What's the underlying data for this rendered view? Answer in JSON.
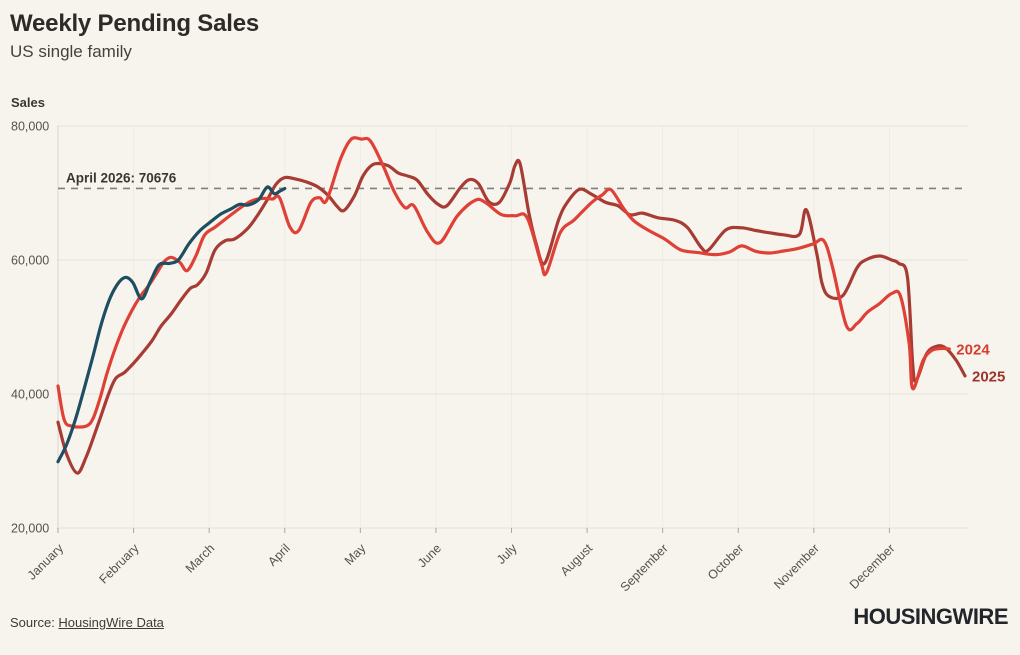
{
  "header": {
    "title": "Weekly Pending Sales",
    "subtitle": "US single family"
  },
  "footer": {
    "source_prefix": "Source: ",
    "source_link_text": "HousingWire Data",
    "logo_text": "HOUSINGWIRE"
  },
  "colors": {
    "background": "#f7f4ee",
    "grid": "#e5e2da",
    "grid_vertical": "#eeebe4",
    "axis": "#d9d6ce",
    "tick": "#aaa79f",
    "tick_text": "#55524e",
    "dashed_line": "#7f7f7c",
    "annotation_text": "#3a3733",
    "series_2024": "#df4137",
    "series_2025": "#a63c33",
    "series_2026": "#1d4e61",
    "label_2024": "#d43d30",
    "label_2025": "#9c352b"
  },
  "chart_data": {
    "type": "line",
    "title": "Weekly Pending Sales",
    "subtitle": "US single family",
    "ylabel": "Sales",
    "ylim": [
      20000,
      80000
    ],
    "yticks": [
      {
        "value": 80000,
        "label": "80,000"
      },
      {
        "value": 60000,
        "label": "60,000"
      },
      {
        "value": 40000,
        "label": "40,000"
      },
      {
        "value": 20000,
        "label": "20,000"
      }
    ],
    "x_axis": {
      "unit": "week-of-year",
      "range": [
        0,
        52
      ],
      "month_labels": [
        "January",
        "February",
        "March",
        "April",
        "May",
        "June",
        "July",
        "August",
        "September",
        "October",
        "November",
        "December"
      ]
    },
    "grid": "horizontal-major, faint vertical monthly",
    "legend_position": "line-end",
    "annotation": {
      "label": "April 2026: 70676",
      "value": 70676
    },
    "series": [
      {
        "name": "2025",
        "color_key": "series_2025",
        "label_color_key": "label_2025",
        "show_end_label": true,
        "points": [
          [
            0,
            35800
          ],
          [
            0.5,
            31000
          ],
          [
            1.1,
            28200
          ],
          [
            1.6,
            30500
          ],
          [
            2.1,
            34000
          ],
          [
            2.5,
            37000
          ],
          [
            2.9,
            40000
          ],
          [
            3.3,
            42300
          ],
          [
            3.8,
            43200
          ],
          [
            4.3,
            44500
          ],
          [
            4.8,
            46000
          ],
          [
            5.4,
            48000
          ],
          [
            5.9,
            50100
          ],
          [
            6.5,
            52000
          ],
          [
            7.1,
            54200
          ],
          [
            7.6,
            55800
          ],
          [
            8,
            56300
          ],
          [
            8.5,
            58100
          ],
          [
            9,
            61500
          ],
          [
            9.6,
            62900
          ],
          [
            10.1,
            63100
          ],
          [
            10.8,
            64500
          ],
          [
            11.4,
            66500
          ],
          [
            12,
            69000
          ],
          [
            12.5,
            71300
          ],
          [
            13,
            72300
          ],
          [
            13.6,
            72100
          ],
          [
            14.3,
            71600
          ],
          [
            14.9,
            70900
          ],
          [
            15.5,
            69600
          ],
          [
            16,
            68000
          ],
          [
            16.4,
            67400
          ],
          [
            17,
            69600
          ],
          [
            17.5,
            72600
          ],
          [
            18.1,
            74300
          ],
          [
            18.9,
            74100
          ],
          [
            19.5,
            73000
          ],
          [
            20.1,
            72500
          ],
          [
            20.6,
            71900
          ],
          [
            21.2,
            69800
          ],
          [
            21.8,
            68300
          ],
          [
            22.3,
            68100
          ],
          [
            23.1,
            70900
          ],
          [
            23.6,
            72000
          ],
          [
            24.1,
            71400
          ],
          [
            24.7,
            68700
          ],
          [
            25.3,
            68600
          ],
          [
            25.9,
            71500
          ],
          [
            26.2,
            74100
          ],
          [
            26.5,
            74300
          ],
          [
            27,
            67000
          ],
          [
            27.4,
            62600
          ],
          [
            27.9,
            59500
          ],
          [
            28.7,
            66000
          ],
          [
            29.2,
            68600
          ],
          [
            29.9,
            70550
          ],
          [
            30.6,
            69800
          ],
          [
            31.4,
            68600
          ],
          [
            32.1,
            68100
          ],
          [
            32.8,
            66750
          ],
          [
            33.5,
            67000
          ],
          [
            34.4,
            66300
          ],
          [
            35.4,
            65900
          ],
          [
            36.1,
            64800
          ],
          [
            36.9,
            61800
          ],
          [
            37.3,
            61500
          ],
          [
            38.3,
            64500
          ],
          [
            39.2,
            64800
          ],
          [
            40,
            64400
          ],
          [
            40.8,
            64060
          ],
          [
            41.6,
            63760
          ],
          [
            42.5,
            63800
          ],
          [
            42.9,
            67500
          ],
          [
            43.5,
            61000
          ],
          [
            43.8,
            56540
          ],
          [
            44.2,
            54580
          ],
          [
            45,
            54700
          ],
          [
            45.8,
            58800
          ],
          [
            46.3,
            60000
          ],
          [
            47.1,
            60600
          ],
          [
            47.8,
            60000
          ],
          [
            48.2,
            59500
          ],
          [
            48.7,
            57500
          ],
          [
            49,
            44500
          ],
          [
            49.2,
            42000
          ],
          [
            49.8,
            46000
          ],
          [
            50.4,
            47150
          ],
          [
            50.9,
            46850
          ],
          [
            51.5,
            45000
          ],
          [
            52,
            42700
          ]
        ]
      },
      {
        "name": "2024",
        "color_key": "series_2024",
        "label_color_key": "label_2024",
        "show_end_label": true,
        "points": [
          [
            0,
            41200
          ],
          [
            0.35,
            36200
          ],
          [
            0.8,
            35200
          ],
          [
            1.6,
            35200
          ],
          [
            2,
            36300
          ],
          [
            2.4,
            39300
          ],
          [
            2.8,
            43000
          ],
          [
            3.2,
            46200
          ],
          [
            3.7,
            49600
          ],
          [
            4.2,
            52300
          ],
          [
            4.7,
            54500
          ],
          [
            5.2,
            56200
          ],
          [
            5.7,
            58200
          ],
          [
            6.1,
            59800
          ],
          [
            6.5,
            60400
          ],
          [
            7,
            59600
          ],
          [
            7.4,
            58400
          ],
          [
            7.9,
            60600
          ],
          [
            8.4,
            63700
          ],
          [
            9,
            64900
          ],
          [
            9.6,
            66100
          ],
          [
            10.2,
            67300
          ],
          [
            10.8,
            68400
          ],
          [
            11.3,
            69000
          ],
          [
            11.8,
            69200
          ],
          [
            12.3,
            69100
          ],
          [
            12.7,
            69300
          ],
          [
            13.3,
            64900
          ],
          [
            13.8,
            64400
          ],
          [
            14.5,
            68600
          ],
          [
            15,
            69300
          ],
          [
            15.4,
            68900
          ],
          [
            16.2,
            75100
          ],
          [
            16.8,
            78000
          ],
          [
            17.4,
            78050
          ],
          [
            17.9,
            77800
          ],
          [
            18.6,
            74300
          ],
          [
            19.3,
            70100
          ],
          [
            19.9,
            67800
          ],
          [
            20.4,
            68100
          ],
          [
            21.2,
            64100
          ],
          [
            21.9,
            62600
          ],
          [
            22.9,
            66600
          ],
          [
            23.9,
            68900
          ],
          [
            24.5,
            68600
          ],
          [
            25.4,
            66800
          ],
          [
            26.2,
            66600
          ],
          [
            26.9,
            66300
          ],
          [
            27.7,
            59500
          ],
          [
            28,
            58100
          ],
          [
            28.8,
            64100
          ],
          [
            29.6,
            66000
          ],
          [
            30.6,
            68600
          ],
          [
            31.2,
            69700
          ],
          [
            31.7,
            70500
          ],
          [
            32.4,
            67800
          ],
          [
            33,
            65900
          ],
          [
            33.8,
            64500
          ],
          [
            34.8,
            63100
          ],
          [
            35.7,
            61500
          ],
          [
            36.7,
            61100
          ],
          [
            37.7,
            60800
          ],
          [
            38.5,
            61200
          ],
          [
            39.2,
            62100
          ],
          [
            40,
            61300
          ],
          [
            40.8,
            61050
          ],
          [
            41.6,
            61350
          ],
          [
            42.4,
            61700
          ],
          [
            43.3,
            62400
          ],
          [
            43.9,
            62900
          ],
          [
            44.4,
            59000
          ],
          [
            45.2,
            50200
          ],
          [
            45.8,
            50500
          ],
          [
            46.4,
            52200
          ],
          [
            47.1,
            53500
          ],
          [
            47.8,
            55000
          ],
          [
            48.3,
            54600
          ],
          [
            48.8,
            47500
          ],
          [
            49,
            40800
          ],
          [
            49.6,
            45000
          ],
          [
            50.1,
            46500
          ],
          [
            50.7,
            46800
          ],
          [
            51.1,
            46700
          ]
        ]
      },
      {
        "name": "2026",
        "color_key": "series_2026",
        "show_end_label": false,
        "points": [
          [
            0,
            29900
          ],
          [
            0.5,
            32500
          ],
          [
            1,
            36200
          ],
          [
            1.5,
            40800
          ],
          [
            2,
            45600
          ],
          [
            2.5,
            50600
          ],
          [
            3,
            54400
          ],
          [
            3.5,
            56700
          ],
          [
            3.9,
            57400
          ],
          [
            4.3,
            56600
          ],
          [
            4.8,
            54200
          ],
          [
            5.3,
            56800
          ],
          [
            5.8,
            59300
          ],
          [
            6.4,
            59500
          ],
          [
            6.9,
            60000
          ],
          [
            7.5,
            62400
          ],
          [
            8.1,
            64300
          ],
          [
            8.7,
            65600
          ],
          [
            9.3,
            66800
          ],
          [
            9.9,
            67600
          ],
          [
            10.4,
            68300
          ],
          [
            10.9,
            68200
          ],
          [
            11.5,
            69000
          ],
          [
            12,
            70900
          ],
          [
            12.4,
            69900
          ],
          [
            12.7,
            70250
          ],
          [
            13,
            70676
          ]
        ]
      }
    ]
  }
}
